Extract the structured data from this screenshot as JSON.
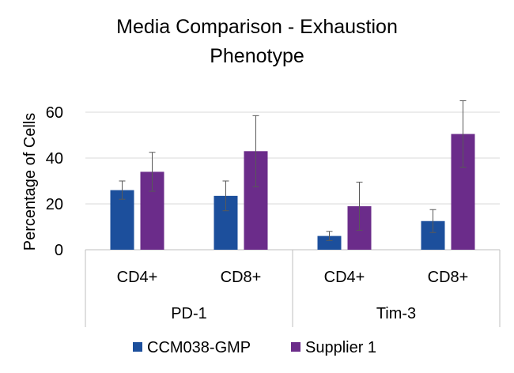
{
  "chart_data": {
    "type": "bar",
    "title_lines": [
      "Media Comparison - Exhaustion",
      "Phenotype"
    ],
    "ylabel": "Percentage of Cells",
    "ylim": [
      0,
      60
    ],
    "yticks": [
      0,
      20,
      40,
      60
    ],
    "grid": true,
    "legend_position": "bottom",
    "groups": [
      {
        "label": "PD-1",
        "categories": [
          "CD4+",
          "CD8+"
        ]
      },
      {
        "label": "Tim-3",
        "categories": [
          "CD4+",
          "CD8+"
        ]
      }
    ],
    "series": [
      {
        "name": "CCM038-GMP",
        "color": "#1c4f9c",
        "values": [
          26,
          23.5,
          6,
          12.5
        ],
        "error": [
          4,
          6.5,
          2,
          5
        ]
      },
      {
        "name": "Supplier 1",
        "color": "#6b2c8a",
        "values": [
          34,
          43,
          19,
          50.5
        ],
        "error": [
          8.5,
          15.5,
          10.5,
          14.5
        ]
      }
    ]
  }
}
